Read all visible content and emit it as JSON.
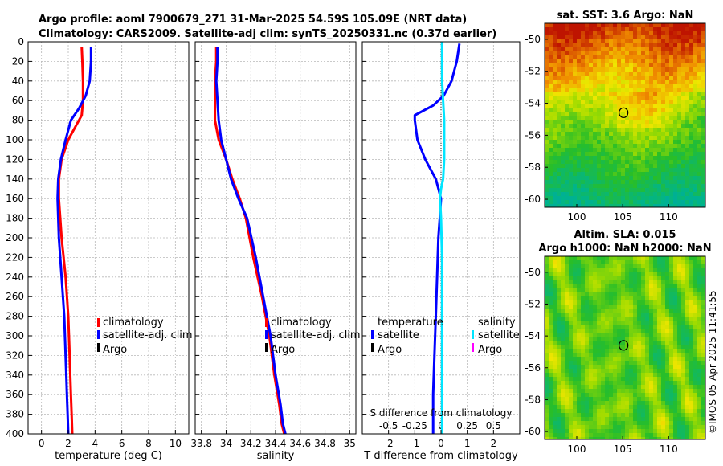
{
  "header": {
    "line1": "Argo profile: aoml 7900679_271 31-Mar-2025 54.59S 105.09E (NRT data)",
    "line2": "Climatology: CARS2009. Satellite-adj clim: synTS_20250331.nc (0.37d earlier)"
  },
  "footer": {
    "stamp": "©IMOS 05-Apr-2025 11:41:55"
  },
  "colors": {
    "climatology": "#ff0000",
    "satellite": "#0000ff",
    "argo": "#000000",
    "s_satellite": "#00e5ff",
    "s_argo": "#ff00ff"
  },
  "panels": {
    "temperature": {
      "legend": [
        "climatology",
        "satellite-adj. clim",
        "Argo"
      ]
    },
    "salinity": {
      "legend": [
        "climatology",
        "satellite-adj. clim",
        "Argo"
      ]
    },
    "difference": {
      "legend_t": [
        "temperature",
        "satellite",
        "Argo"
      ],
      "legend_s": [
        "salinity",
        "satellite",
        "Argo"
      ],
      "s_axis_label": "S difference from climatology"
    }
  },
  "maps": {
    "sst": {
      "title": "sat. SST: 3.6 Argo: NaN"
    },
    "sla": {
      "title": [
        "Altim. SLA: 0.015",
        "Argo h1000: NaN h2000: NaN"
      ]
    }
  },
  "chart_data": [
    {
      "type": "line",
      "title": "",
      "xlabel": "temperature (deg C)",
      "ylabel": "",
      "xlim": [
        -1,
        11
      ],
      "ylim": [
        400,
        0
      ],
      "xticks": [
        0,
        2,
        4,
        6,
        8,
        10
      ],
      "yticks": [
        0,
        20,
        40,
        60,
        80,
        100,
        120,
        140,
        160,
        180,
        200,
        220,
        240,
        260,
        280,
        300,
        320,
        340,
        360,
        380,
        400
      ],
      "grid": true,
      "series": [
        {
          "name": "climatology",
          "color": "#ff0000",
          "x": [
            3.0,
            3.05,
            3.1,
            3.1,
            3.0,
            2.6,
            2.0,
            1.5,
            1.3,
            1.3,
            1.5,
            1.8,
            2.0,
            2.1,
            2.2,
            2.25,
            2.3
          ],
          "y": [
            5,
            20,
            40,
            60,
            75,
            85,
            100,
            120,
            140,
            160,
            200,
            240,
            280,
            320,
            360,
            380,
            400
          ]
        },
        {
          "name": "satellite-adj. clim",
          "color": "#0000ff",
          "x": [
            3.7,
            3.7,
            3.6,
            3.3,
            2.8,
            2.2,
            1.8,
            1.45,
            1.25,
            1.2,
            1.3,
            1.5,
            1.7,
            1.8,
            1.9,
            1.95,
            2.0
          ],
          "y": [
            5,
            20,
            40,
            55,
            68,
            80,
            100,
            120,
            140,
            160,
            200,
            240,
            280,
            320,
            360,
            380,
            400
          ]
        }
      ]
    },
    {
      "type": "line",
      "title": "",
      "xlabel": "salinity",
      "ylabel": "",
      "xlim": [
        33.75,
        35.05
      ],
      "ylim": [
        400,
        0
      ],
      "xticks": [
        33.8,
        34,
        34.2,
        34.4,
        34.6,
        34.8,
        35
      ],
      "yticks": [
        0,
        20,
        40,
        60,
        80,
        100,
        120,
        140,
        160,
        180,
        200,
        220,
        240,
        260,
        280,
        300,
        320,
        340,
        360,
        380,
        400
      ],
      "grid": true,
      "series": [
        {
          "name": "climatology",
          "color": "#ff0000",
          "x": [
            33.92,
            33.92,
            33.91,
            33.91,
            33.91,
            33.94,
            34.0,
            34.05,
            34.11,
            34.16,
            34.22,
            34.29,
            34.35,
            34.39,
            34.43,
            34.45,
            34.47
          ],
          "y": [
            5,
            20,
            40,
            60,
            80,
            100,
            120,
            140,
            160,
            180,
            220,
            260,
            300,
            340,
            370,
            390,
            400
          ]
        },
        {
          "name": "satellite-adj. clim",
          "color": "#0000ff",
          "x": [
            33.93,
            33.93,
            33.92,
            33.93,
            33.94,
            33.96,
            34.0,
            34.04,
            34.1,
            34.17,
            34.24,
            34.3,
            34.36,
            34.4,
            34.44,
            34.46,
            34.48
          ],
          "y": [
            5,
            20,
            40,
            60,
            80,
            100,
            120,
            140,
            160,
            180,
            220,
            260,
            300,
            340,
            370,
            390,
            400
          ]
        }
      ]
    },
    {
      "type": "line",
      "title": "",
      "xlabel": "T difference from climatology",
      "ylabel": "",
      "xlim": [
        -3,
        3
      ],
      "ylim": [
        400,
        0
      ],
      "xticks": [
        -2,
        -1,
        0,
        1,
        2
      ],
      "s_xlim": [
        -0.75,
        0.75
      ],
      "s_xticks": [
        -0.5,
        -0.25,
        0,
        0.25,
        0.5
      ],
      "s_xtick_labels": [
        "-0.5",
        "-0.25",
        "0",
        "0.25",
        "0.5"
      ],
      "yticks": [
        0,
        20,
        40,
        60,
        80,
        100,
        120,
        140,
        160,
        180,
        200,
        220,
        240,
        260,
        280,
        300,
        320,
        340,
        360,
        380,
        400
      ],
      "grid": true,
      "series": [
        {
          "name": "T satellite",
          "color": "#0000ff",
          "axis": "T",
          "x": [
            0.7,
            0.6,
            0.5,
            0.4,
            0.1,
            -0.3,
            -1.0,
            -1.0,
            -0.9,
            -0.6,
            -0.2,
            0.0,
            -0.05,
            -0.1,
            -0.15,
            -0.2,
            -0.25,
            -0.3,
            -0.3
          ],
          "y": [
            2,
            20,
            30,
            40,
            55,
            65,
            75,
            80,
            100,
            120,
            140,
            160,
            180,
            200,
            240,
            280,
            320,
            360,
            400
          ]
        },
        {
          "name": "S satellite",
          "color": "#00e5ff",
          "axis": "S",
          "x": [
            0.01,
            0.01,
            0.02,
            0.03,
            0.03,
            0.03,
            0.02,
            0.0,
            -0.01,
            0.0,
            0.01,
            0.01,
            0.01,
            0.01,
            0.01,
            0.01,
            0.01
          ],
          "y": [
            0,
            40,
            60,
            80,
            100,
            120,
            140,
            150,
            160,
            180,
            220,
            260,
            300,
            340,
            370,
            390,
            400
          ]
        }
      ]
    },
    {
      "type": "heatmap",
      "title": "sat. SST: 3.6 Argo: NaN",
      "xlim": [
        96.5,
        114
      ],
      "ylim": [
        -60.5,
        -49
      ],
      "xticks": [
        100,
        105,
        110
      ],
      "yticks": [
        -50,
        -52,
        -54,
        -56,
        -58,
        -60
      ],
      "marker": {
        "lon": 105.09,
        "lat": -54.59
      }
    },
    {
      "type": "heatmap",
      "title": "Altim. SLA: 0.015 / Argo h1000: NaN h2000: NaN",
      "xlim": [
        96.5,
        114
      ],
      "ylim": [
        -60.5,
        -49
      ],
      "xticks": [
        100,
        105,
        110
      ],
      "yticks": [
        -50,
        -52,
        -54,
        -56,
        -58,
        -60
      ],
      "marker": {
        "lon": 105.09,
        "lat": -54.59
      }
    }
  ]
}
